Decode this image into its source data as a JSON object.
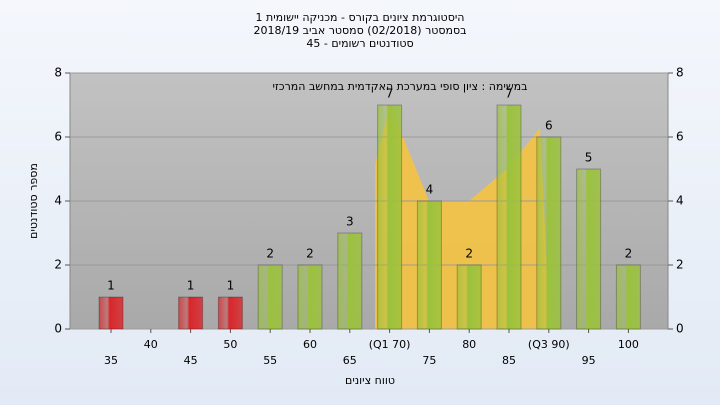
{
  "chart_data": {
    "type": "bar",
    "title": "היסטוגרמת ציונים בקורס - מכניקה יישומית 1",
    "subtitle": "בסמסטר (02/2018) סמסטר אביב 2018/19",
    "subtitle2": "סטודנטים רשומים - 45",
    "annotation": "במשימה : ציון סופי במערכת האקדמית במחשב המרכזי",
    "x_label": "טווח ציונים",
    "y_label": "מספר סטודנטים",
    "categories": [
      "35",
      "40",
      "45",
      "50",
      "55",
      "60",
      "65",
      "(Q1 70)",
      "75",
      "80",
      "85",
      "(Q3 90)",
      "95",
      "100"
    ],
    "values": [
      1,
      0,
      1,
      1,
      2,
      2,
      3,
      7,
      4,
      2,
      7,
      6,
      5,
      2
    ],
    "colors": [
      "#d9262b",
      "#d9262b",
      "#d9262b",
      "#d9262b",
      "#9bc23c",
      "#9bc23c",
      "#9bc23c",
      "#9bc23c",
      "#9bc23c",
      "#9bc23c",
      "#9bc23c",
      "#9bc23c",
      "#9bc23c",
      "#9bc23c"
    ],
    "ylim": [
      0,
      8
    ],
    "yticks": [
      0,
      2,
      4,
      6,
      8
    ],
    "grid": true
  }
}
